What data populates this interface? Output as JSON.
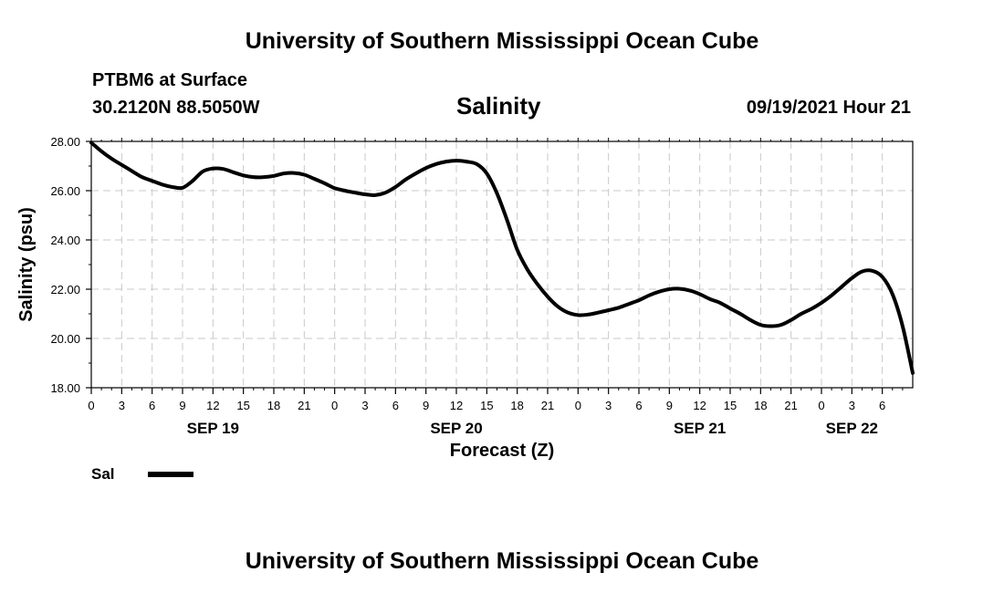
{
  "header": {
    "title_top": "University of Southern Mississippi Ocean Cube",
    "title_bottom": "University of Southern Mississippi Ocean Cube",
    "station": "PTBM6 at Surface",
    "coords": "30.2120N  88.5050W",
    "timestamp": "09/19/2021 Hour 21"
  },
  "chart_data": {
    "type": "line",
    "title": "Salinity",
    "xlabel": "Forecast (Z)",
    "ylabel": "Salinity (psu)",
    "xlim": [
      0,
      81
    ],
    "ylim": [
      18,
      28
    ],
    "grid": true,
    "legend_position": "bottom-left",
    "y_ticks": [
      "18.00",
      "20.00",
      "22.00",
      "24.00",
      "26.00",
      "28.00"
    ],
    "x_tick_labels": [
      "0",
      "3",
      "6",
      "9",
      "12",
      "15",
      "18",
      "21",
      "0",
      "3",
      "6",
      "9",
      "12",
      "15",
      "18",
      "21",
      "0",
      "3",
      "6",
      "9",
      "12",
      "15",
      "18",
      "21",
      "0",
      "3",
      "6"
    ],
    "day_labels": [
      {
        "hour": 12,
        "label": "SEP 19"
      },
      {
        "hour": 36,
        "label": "SEP 20"
      },
      {
        "hour": 60,
        "label": "SEP 21"
      },
      {
        "hour": 75,
        "label": "SEP 22"
      }
    ],
    "series": [
      {
        "name": "Sal",
        "color": "#000000",
        "x": [
          0,
          1,
          2,
          3,
          4,
          5,
          6,
          7,
          8,
          9,
          10,
          11,
          12,
          13,
          14,
          15,
          16,
          17,
          18,
          19,
          20,
          21,
          22,
          23,
          24,
          25,
          26,
          27,
          28,
          29,
          30,
          31,
          32,
          33,
          34,
          35,
          36,
          37,
          38,
          39,
          40,
          41,
          42,
          43,
          44,
          45,
          46,
          47,
          48,
          49,
          50,
          51,
          52,
          53,
          54,
          55,
          56,
          57,
          58,
          59,
          60,
          61,
          62,
          63,
          64,
          65,
          66,
          67,
          68,
          69,
          70,
          71,
          72,
          73,
          74,
          75,
          76,
          77,
          78
        ],
        "y": [
          27.95,
          27.6,
          27.3,
          27.05,
          26.8,
          26.55,
          26.4,
          26.25,
          26.15,
          26.12,
          26.4,
          26.78,
          26.9,
          26.88,
          26.75,
          26.62,
          26.55,
          26.55,
          26.6,
          26.7,
          26.72,
          26.65,
          26.48,
          26.3,
          26.1,
          26.0,
          25.92,
          25.85,
          25.82,
          25.92,
          26.15,
          26.45,
          26.7,
          26.92,
          27.08,
          27.18,
          27.22,
          27.18,
          27.08,
          26.7,
          25.9,
          24.8,
          23.6,
          22.8,
          22.2,
          21.7,
          21.3,
          21.05,
          20.95,
          20.97,
          21.05,
          21.15,
          21.25,
          21.4,
          21.55,
          21.75,
          21.9,
          22.0,
          22.02,
          21.95,
          21.8,
          21.6,
          21.45,
          21.22,
          21.0,
          20.75,
          20.55,
          20.5,
          20.55,
          20.75,
          21.0,
          21.2,
          21.45,
          21.75,
          22.1,
          22.45,
          22.72,
          22.75,
          22.5
        ]
      }
    ],
    "series_tail": {
      "x": [
        79,
        80,
        81
      ],
      "y": [
        21.8,
        20.5,
        18.6
      ]
    }
  },
  "legend": {
    "label": "Sal"
  }
}
